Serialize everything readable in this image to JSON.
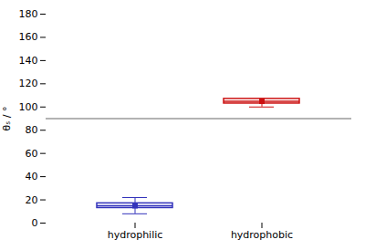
{
  "chart_data": {
    "type": "box",
    "categories": [
      "hydrophilic",
      "hydrophobic"
    ],
    "median": [
      15,
      105
    ],
    "q1": [
      13,
      103
    ],
    "q3": [
      17,
      107
    ],
    "whisker_low": [
      8,
      100
    ],
    "whisker_high": [
      22,
      107
    ],
    "colors": [
      "#3333bb",
      "#cc1111"
    ],
    "hline_y": 90,
    "hline_color": "#666666",
    "ylabel": "θₛ / °",
    "ylim": [
      0,
      180
    ],
    "yticks": [
      0,
      20,
      40,
      60,
      80,
      100,
      120,
      140,
      160,
      180
    ],
    "grid": false
  }
}
